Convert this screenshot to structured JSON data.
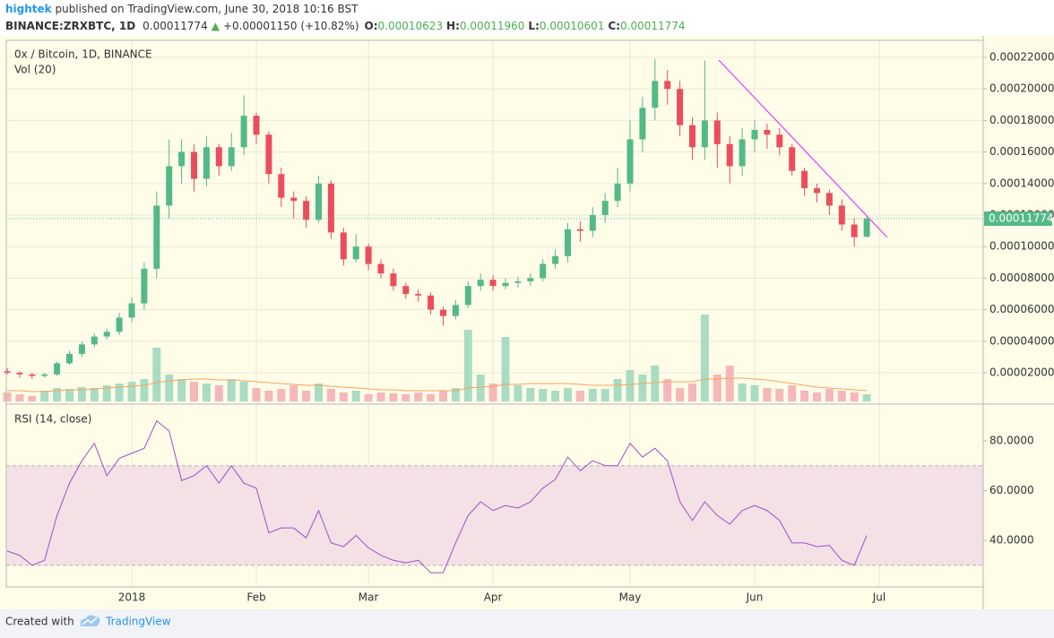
{
  "header": {
    "user": "hightek",
    "published": " published on TradingView.com, June 30, 2018 10:16 BST",
    "symbol": "BINANCE:ZRXBTC, 1D",
    "last": "0.00011774",
    "arrow": "▲",
    "change": "+0.00001150 (+10.82%)",
    "o_label": "O:",
    "o": "0.00010623",
    "h_label": "H:",
    "h": "0.00011960",
    "l_label": "L:",
    "l": "0.00010601",
    "c_label": "C:",
    "c": "0.00011774"
  },
  "chart_data": [
    {
      "type": "candlestick",
      "title": "0x / Bitcoin, 1D, BINANCE",
      "categories": [
        null,
        null,
        null,
        null,
        null,
        null,
        null,
        null,
        null,
        null,
        "2018",
        null,
        null,
        null,
        null,
        null,
        null,
        null,
        null,
        null,
        "Feb",
        null,
        null,
        null,
        null,
        null,
        null,
        null,
        null,
        "Mar",
        null,
        null,
        null,
        null,
        null,
        null,
        null,
        null,
        null,
        "Apr",
        null,
        null,
        null,
        null,
        null,
        null,
        null,
        null,
        null,
        null,
        "May",
        null,
        null,
        null,
        null,
        null,
        null,
        null,
        null,
        null,
        "Jun",
        null,
        null,
        null,
        null,
        null,
        null,
        null,
        null,
        null,
        "Jul"
      ],
      "open": [
        2.1e-05,
        2e-05,
        1.9e-05,
        1.8e-05,
        1.9e-05,
        2.6e-05,
        3.2e-05,
        3.8e-05,
        4.3e-05,
        4.6e-05,
        5.5e-05,
        6.4e-05,
        8.6e-05,
        0.000126,
        0.000151,
        0.00016,
        0.000143,
        0.000163,
        0.000151,
        0.000163,
        0.000183,
        0.000171,
        0.000146,
        0.000131,
        0.000129,
        0.000117,
        0.00014,
        0.000109,
        9.2e-05,
        0.0001,
        8.9e-05,
        8.3e-05,
        7.5e-05,
        7e-05,
        6.9e-05,
        6e-05,
        5.6e-05,
        6.3e-05,
        7.5e-05,
        7.9e-05,
        7.5e-05,
        7.7e-05,
        7.8e-05,
        8e-05,
        8.9e-05,
        9.4e-05,
        0.000111,
        0.00011,
        0.00012,
        0.000129,
        0.00014,
        0.000168,
        0.000188,
        0.000205,
        0.0002,
        0.000177,
        0.000163,
        0.00018,
        0.000165,
        0.000151,
        0.000168,
        0.000174,
        0.000171,
        0.000163,
        0.000148,
        0.000137,
        0.000134,
        0.000126,
        0.000114,
        0.00010623,
        null
      ],
      "high": [
        2.3e-05,
        2.1e-05,
        2e-05,
        2e-05,
        2.7e-05,
        3.4e-05,
        4e-05,
        4.5e-05,
        4.8e-05,
        5.8e-05,
        6.8e-05,
        9e-05,
        0.000135,
        0.000168,
        0.000168,
        0.000165,
        0.00017,
        0.000165,
        0.000172,
        0.000196,
        0.000185,
        0.000173,
        0.00015,
        0.000135,
        0.000132,
        0.000145,
        0.000142,
        0.000112,
        0.000108,
        0.000102,
        9.2e-05,
        8.6e-05,
        7.7e-05,
        7.3e-05,
        7.1e-05,
        6.2e-05,
        6.6e-05,
        7.8e-05,
        8.3e-05,
        8.2e-05,
        8e-05,
        8.1e-05,
        8.3e-05,
        9.2e-05,
        9.8e-05,
        0.000115,
        0.000116,
        0.000125,
        0.000134,
        0.00015,
        0.00018,
        0.000195,
        0.000219,
        0.000212,
        0.000205,
        0.000182,
        0.000218,
        0.000185,
        0.00017,
        0.000175,
        0.00018,
        0.000178,
        0.000175,
        0.000165,
        0.00015,
        0.00014,
        0.000136,
        0.00013,
        0.000118,
        0.0001196,
        null
      ],
      "low": [
        1.9e-05,
        1.7e-05,
        1.6e-05,
        1.7e-05,
        1.8e-05,
        2.5e-05,
        3e-05,
        3.6e-05,
        4.1e-05,
        4.4e-05,
        5.2e-05,
        6e-05,
        8e-05,
        0.000118,
        0.00014,
        0.000135,
        0.000138,
        0.000145,
        0.000148,
        0.000158,
        0.000165,
        0.00014,
        0.000125,
        0.000118,
        0.000112,
        0.000115,
        0.000105,
        8.8e-05,
        9e-05,
        8.5e-05,
        8e-05,
        7.2e-05,
        6.7e-05,
        6.5e-05,
        5.7e-05,
        5e-05,
        5.4e-05,
        6.1e-05,
        7.2e-05,
        7.2e-05,
        7.3e-05,
        7.4e-05,
        7.5e-05,
        7.8e-05,
        8.6e-05,
        9e-05,
        0.000103,
        0.000106,
        0.000115,
        0.000125,
        0.000135,
        0.00016,
        0.00018,
        0.00019,
        0.00017,
        0.000155,
        0.000155,
        0.00015,
        0.00014,
        0.000145,
        0.00016,
        0.000162,
        0.000158,
        0.000145,
        0.000132,
        0.000128,
        0.00012,
        0.00011,
        0.0001,
        0.00010601,
        null
      ],
      "close": [
        2e-05,
        1.9e-05,
        1.8e-05,
        1.9e-05,
        2.6e-05,
        3.2e-05,
        3.8e-05,
        4.3e-05,
        4.6e-05,
        5.5e-05,
        6.4e-05,
        8.6e-05,
        0.000126,
        0.000151,
        0.00016,
        0.000143,
        0.000163,
        0.000151,
        0.000163,
        0.000183,
        0.000171,
        0.000146,
        0.000131,
        0.000129,
        0.000117,
        0.00014,
        0.000109,
        9.2e-05,
        0.0001,
        8.9e-05,
        8.3e-05,
        7.5e-05,
        7e-05,
        6.9e-05,
        6e-05,
        5.6e-05,
        6.3e-05,
        7.5e-05,
        7.9e-05,
        7.5e-05,
        7.7e-05,
        7.8e-05,
        8e-05,
        8.9e-05,
        9.4e-05,
        0.000111,
        0.00011,
        0.00012,
        0.000129,
        0.00014,
        0.000168,
        0.000188,
        0.000205,
        0.0002,
        0.000177,
        0.000163,
        0.00018,
        0.000165,
        0.000151,
        0.000168,
        0.000174,
        0.000171,
        0.000163,
        0.000148,
        0.000137,
        0.000134,
        0.000126,
        0.000114,
        0.000106,
        0.00011774,
        null
      ],
      "up_color": "#53b987",
      "down_color": "#eb4d5c",
      "ylim": [
        7e-07,
        0.0002308
      ],
      "yticks": [
        {
          "value": 2e-05,
          "label": "0.00002000"
        },
        {
          "value": 4e-05,
          "label": "0.00004000"
        },
        {
          "value": 6e-05,
          "label": "0.00006000"
        },
        {
          "value": 8e-05,
          "label": "0.00008000"
        },
        {
          "value": 0.0001,
          "label": "0.00010000"
        },
        {
          "value": 0.00012,
          "label": "0.00012000"
        },
        {
          "value": 0.00014,
          "label": "0.00014000"
        },
        {
          "value": 0.00016,
          "label": "0.00016000"
        },
        {
          "value": 0.00018,
          "label": "0.00018000"
        },
        {
          "value": 0.0002,
          "label": "0.00020000"
        },
        {
          "value": 0.00022,
          "label": "0.00022000"
        }
      ],
      "grid": true,
      "volume": {
        "name": "Vol (20)",
        "ylim": [
          0,
          100
        ],
        "up_color": "#a9dcc3",
        "down_color": "#f5b7b9",
        "ma_color": "#f7a35c",
        "values": [
          10,
          8,
          6,
          12,
          15,
          14,
          16,
          15,
          18,
          20,
          22,
          25,
          60,
          30,
          25,
          22,
          20,
          18,
          25,
          22,
          15,
          12,
          14,
          18,
          12,
          20,
          14,
          10,
          12,
          8,
          10,
          9,
          8,
          10,
          8,
          12,
          15,
          80,
          30,
          20,
          72,
          18,
          15,
          14,
          12,
          15,
          12,
          14,
          14,
          25,
          35,
          30,
          40,
          25,
          15,
          20,
          97,
          30,
          40,
          20,
          18,
          15,
          14,
          18,
          12,
          10,
          14,
          12,
          10,
          8,
          null
        ],
        "ma": [
          12,
          12,
          11,
          11,
          12,
          13,
          13,
          14,
          15,
          16,
          17,
          18,
          21,
          23,
          24,
          25,
          25,
          24,
          24,
          23,
          22,
          21,
          20,
          19,
          18,
          18,
          17,
          16,
          15,
          14,
          13,
          13,
          12,
          12,
          12,
          12,
          12,
          15,
          16,
          17,
          19,
          19,
          20,
          20,
          20,
          20,
          19,
          18,
          18,
          18,
          19,
          20,
          21,
          22,
          22,
          22,
          25,
          25,
          26,
          26,
          25,
          24,
          22,
          20,
          18,
          16,
          15,
          14,
          13,
          12,
          null
        ]
      }
    },
    {
      "type": "line",
      "title": "RSI (14, close)",
      "color": "#9c4fc4",
      "band": [
        30,
        70
      ],
      "band_color": "#f3e1e6",
      "values": [
        35.7,
        34,
        30,
        32,
        50,
        63,
        72,
        79,
        66,
        73,
        75,
        77,
        88,
        84,
        64,
        66,
        70,
        63,
        70,
        63,
        61,
        43,
        45,
        45,
        41,
        52,
        39,
        37.5,
        42,
        37,
        34,
        32,
        31,
        32,
        27,
        27,
        39,
        50,
        55.5,
        52,
        54,
        53,
        55.5,
        61,
        64.5,
        73.5,
        68,
        72,
        70,
        70,
        79,
        73.5,
        77,
        72,
        55.5,
        48,
        55.5,
        50,
        46.5,
        52,
        54,
        52,
        48,
        39,
        39,
        37.5,
        38,
        32,
        30,
        42,
        null
      ],
      "ylim": [
        21.3,
        94.4
      ],
      "yticks": [
        {
          "value": 40,
          "label": "40.0000"
        },
        {
          "value": 60,
          "label": "60.0000"
        },
        {
          "value": 80,
          "label": "80.0000"
        }
      ]
    }
  ],
  "footer": {
    "text": "Created with",
    "brand": "TradingView"
  }
}
